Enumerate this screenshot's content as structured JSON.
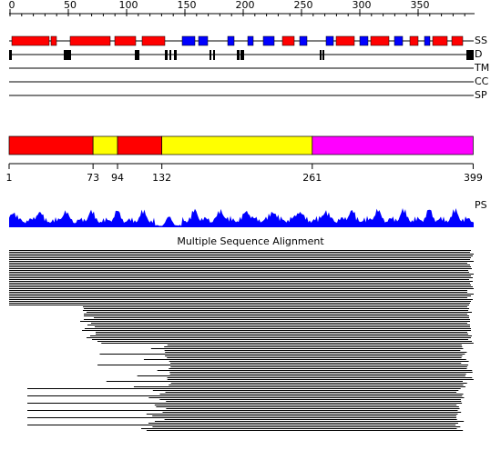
{
  "ruler": {
    "ticks": [
      0,
      50,
      100,
      150,
      200,
      250,
      300,
      350
    ]
  },
  "tracks": [
    "SS",
    "D",
    "TM",
    "CC",
    "SP"
  ],
  "domains": {
    "boundaries": [
      1,
      73,
      94,
      132,
      261,
      399
    ],
    "colors": [
      "#ff0000",
      "#ffff00",
      "#ff0000",
      "#ffff00",
      "#ff00ff"
    ]
  },
  "profile_label": "PS",
  "alignment_title": "Multiple Sequence Alignment"
}
